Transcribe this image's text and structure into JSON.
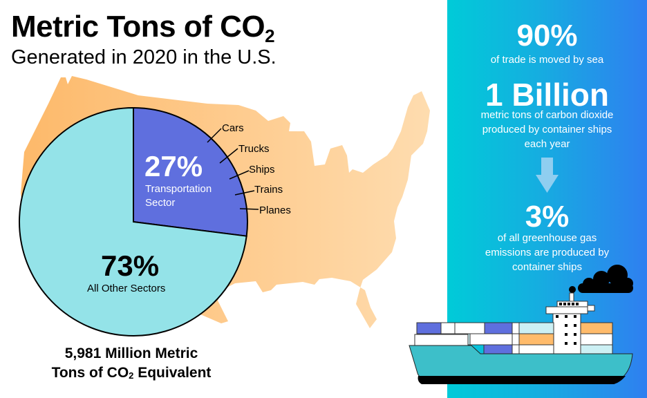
{
  "header": {
    "title": "Metric Tons of CO",
    "title_sub": "2",
    "subtitle": "Generated in 2020 in the U.S."
  },
  "chart_data": {
    "type": "pie",
    "title": "Metric Tons of CO2 Generated in 2020 in the U.S.",
    "slices": [
      {
        "name": "Transportation Sector",
        "value": 27,
        "label": "27%",
        "color": "#5f6fde"
      },
      {
        "name": "All Other Sectors",
        "value": 73,
        "label": "73%",
        "color": "#94e3e8"
      }
    ],
    "transportation_modes": [
      "Cars",
      "Trucks",
      "Ships",
      "Trains",
      "Planes"
    ],
    "total": {
      "line1": "5,981 Million Metric",
      "line2_pre": "Tons of CO",
      "line2_sub": "2",
      "line2_post": " Equivalent"
    }
  },
  "pie_labels": {
    "transport_pct": "27%",
    "transport_line1": "Transportation",
    "transport_line2": "Sector",
    "other_pct": "73%",
    "other_label": "All Other Sectors"
  },
  "panel": {
    "stat1": {
      "value": "90%",
      "text": "of trade is moved by sea"
    },
    "stat2": {
      "value": "1 Billion",
      "line1": "metric tons of carbon dioxide",
      "line2": "produced by container ships",
      "line3": "each year"
    },
    "stat3": {
      "value": "3%",
      "line1": "of all greenhouse gas",
      "line2": "emissions are produced by",
      "line3": "container ships"
    }
  },
  "icons": {
    "arrow": "arrow-down-icon",
    "ship": "container-ship-icon",
    "smoke": "smoke-cloud-icon",
    "map": "us-map"
  },
  "colors": {
    "map_left": "#fdb96a",
    "map_right": "#fedcaf",
    "transport": "#5f6fde",
    "other": "#94e3e8",
    "panel_left": "#00cbd8",
    "panel_right": "#2f7ff0",
    "hull": "#3dbfc9",
    "container_orange": "#ffbb6b",
    "container_light": "#ccf0f4"
  }
}
